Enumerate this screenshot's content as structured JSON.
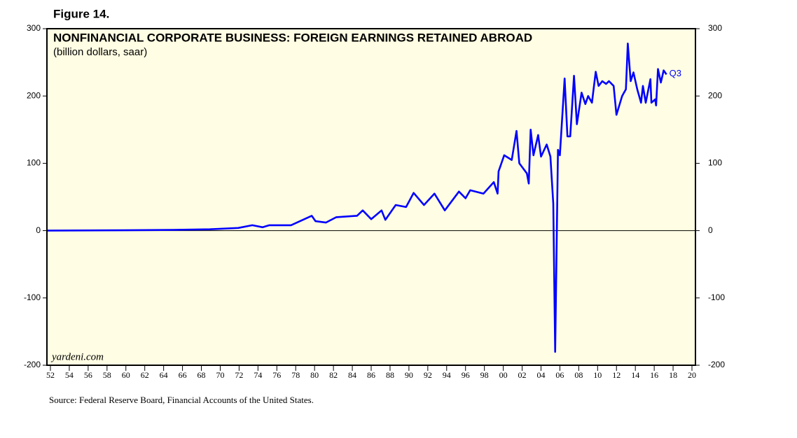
{
  "chart_data": {
    "type": "line",
    "figure_label": "Figure 14.",
    "title": "NONFINANCIAL CORPORATE BUSINESS: FOREIGN EARNINGS RETAINED ABROAD",
    "subtitle": "(billion dollars, saar)",
    "watermark": "yardeni.com",
    "source": "Source: Federal Reserve Board, Financial Accounts of the United States.",
    "annotation": "Q3",
    "x": [
      1951.7,
      1960,
      1965,
      1968.9,
      1971.9,
      1973.4,
      1974.5,
      1975.2,
      1977.5,
      1978.6,
      1979.7,
      1980.1,
      1981.2,
      1982.3,
      1984.5,
      1985.1,
      1986.0,
      1987.1,
      1987.5,
      1988.6,
      1989.7,
      1990.5,
      1991.6,
      1992.7,
      1993.8,
      1995.3,
      1996.0,
      1996.5,
      1997.9,
      1999.0,
      1999.4,
      1999.5,
      2000.1,
      2000.9,
      2001.4,
      2001.7,
      2002.5,
      2002.7,
      2002.9,
      2003.2,
      2003.7,
      2004.0,
      2004.6,
      2005.0,
      2005.3,
      2005.5,
      2005.8,
      2006.0,
      2006.5,
      2006.8,
      2007.1,
      2007.5,
      2007.8,
      2008.3,
      2008.7,
      2009.0,
      2009.4,
      2009.8,
      2010.1,
      2010.5,
      2010.9,
      2011.2,
      2011.7,
      2012.0,
      2012.6,
      2013.0,
      2013.2,
      2013.5,
      2013.8,
      2014.2,
      2014.6,
      2014.8,
      2015.1,
      2015.6,
      2015.7,
      2016.1,
      2016.2,
      2016.4,
      2016.7,
      2017.0,
      2017.3
    ],
    "series": [
      {
        "name": "Foreign earnings retained abroad",
        "color": "#0000ff",
        "values": [
          0,
          0.5,
          1,
          2,
          4,
          8,
          5,
          8,
          8,
          15,
          22,
          14,
          12,
          20,
          22,
          30,
          17,
          30,
          16,
          38,
          35,
          56,
          38,
          55,
          30,
          58,
          48,
          60,
          55,
          72,
          55,
          88,
          112,
          105,
          148,
          100,
          85,
          70,
          150,
          112,
          142,
          110,
          128,
          110,
          40,
          -180,
          120,
          112,
          226,
          140,
          140,
          230,
          158,
          205,
          188,
          200,
          190,
          236,
          215,
          222,
          218,
          222,
          215,
          172,
          200,
          210,
          278,
          222,
          235,
          210,
          190,
          215,
          190,
          225,
          190,
          195,
          186,
          240,
          220,
          238,
          232
        ]
      }
    ],
    "xlim": [
      1951.63,
      2020.37
    ],
    "xticks": [
      {
        "value": 1952,
        "label": "52"
      },
      {
        "value": 1954,
        "label": "54"
      },
      {
        "value": 1956,
        "label": "56"
      },
      {
        "value": 1958,
        "label": "58"
      },
      {
        "value": 1960,
        "label": "60"
      },
      {
        "value": 1962,
        "label": "62"
      },
      {
        "value": 1964,
        "label": "64"
      },
      {
        "value": 1966,
        "label": "66"
      },
      {
        "value": 1968,
        "label": "68"
      },
      {
        "value": 1970,
        "label": "70"
      },
      {
        "value": 1972,
        "label": "72"
      },
      {
        "value": 1974,
        "label": "74"
      },
      {
        "value": 1976,
        "label": "76"
      },
      {
        "value": 1978,
        "label": "78"
      },
      {
        "value": 1980,
        "label": "80"
      },
      {
        "value": 1982,
        "label": "82"
      },
      {
        "value": 1984,
        "label": "84"
      },
      {
        "value": 1986,
        "label": "86"
      },
      {
        "value": 1988,
        "label": "88"
      },
      {
        "value": 1990,
        "label": "90"
      },
      {
        "value": 1992,
        "label": "92"
      },
      {
        "value": 1994,
        "label": "94"
      },
      {
        "value": 1996,
        "label": "96"
      },
      {
        "value": 1998,
        "label": "98"
      },
      {
        "value": 2000,
        "label": "00"
      },
      {
        "value": 2002,
        "label": "02"
      },
      {
        "value": 2004,
        "label": "04"
      },
      {
        "value": 2006,
        "label": "06"
      },
      {
        "value": 2008,
        "label": "08"
      },
      {
        "value": 2010,
        "label": "10"
      },
      {
        "value": 2012,
        "label": "12"
      },
      {
        "value": 2014,
        "label": "14"
      },
      {
        "value": 2016,
        "label": "16"
      },
      {
        "value": 2018,
        "label": "18"
      },
      {
        "value": 2020,
        "label": "20"
      }
    ],
    "ylim": [
      -200,
      300
    ],
    "yticks": [
      -200,
      -100,
      0,
      100,
      200,
      300
    ],
    "zero_line": true,
    "background": "#fffde3"
  }
}
